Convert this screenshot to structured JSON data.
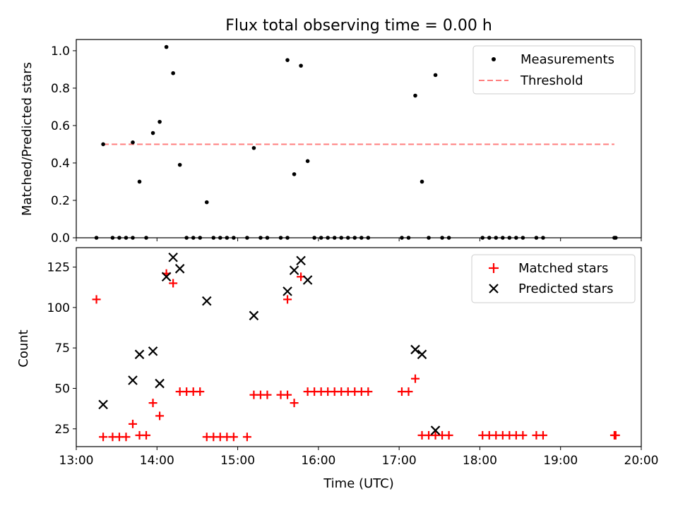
{
  "chart_data": [
    {
      "type": "scatter",
      "title": "Flux total observing time = 0.00 h",
      "xlabel": "",
      "ylabel": "Matched/Predicted stars",
      "ylim": [
        0,
        1.06
      ],
      "yticks": [
        "0.0",
        "0.2",
        "0.4",
        "0.6",
        "0.8",
        "1.0"
      ],
      "legend_position": "upper right",
      "legend": [
        {
          "label": "Measurements",
          "style": "dot",
          "color": "#000000"
        },
        {
          "label": "Threshold",
          "style": "dashed",
          "color": "#ff7f7f"
        }
      ],
      "threshold": {
        "value": 0.5,
        "x_start": "13:20",
        "x_end": "19:40"
      },
      "series": [
        {
          "name": "Measurements",
          "marker": "dot",
          "color": "#000000",
          "points": [
            [
              "13:15",
              0.0
            ],
            [
              "13:20",
              0.5
            ],
            [
              "13:27",
              0.0
            ],
            [
              "13:32",
              0.0
            ],
            [
              "13:37",
              0.0
            ],
            [
              "13:42",
              0.0
            ],
            [
              "13:42",
              0.51
            ],
            [
              "13:47",
              0.3
            ],
            [
              "13:52",
              0.0
            ],
            [
              "13:57",
              0.56
            ],
            [
              "14:02",
              0.62
            ],
            [
              "14:07",
              1.02
            ],
            [
              "14:12",
              0.88
            ],
            [
              "14:17",
              0.39
            ],
            [
              "14:22",
              0.0
            ],
            [
              "14:27",
              0.0
            ],
            [
              "14:32",
              0.0
            ],
            [
              "14:37",
              0.19
            ],
            [
              "14:42",
              0.0
            ],
            [
              "14:47",
              0.0
            ],
            [
              "14:52",
              0.0
            ],
            [
              "14:57",
              0.0
            ],
            [
              "15:07",
              0.0
            ],
            [
              "15:12",
              0.48
            ],
            [
              "15:17",
              0.0
            ],
            [
              "15:22",
              0.0
            ],
            [
              "15:32",
              0.0
            ],
            [
              "15:37",
              0.0
            ],
            [
              "15:37",
              0.95
            ],
            [
              "15:42",
              0.34
            ],
            [
              "15:47",
              0.92
            ],
            [
              "15:52",
              0.41
            ],
            [
              "15:57",
              0.0
            ],
            [
              "16:02",
              0.0
            ],
            [
              "16:07",
              0.0
            ],
            [
              "16:12",
              0.0
            ],
            [
              "16:17",
              0.0
            ],
            [
              "16:22",
              0.0
            ],
            [
              "16:27",
              0.0
            ],
            [
              "16:32",
              0.0
            ],
            [
              "16:37",
              0.0
            ],
            [
              "17:02",
              0.0
            ],
            [
              "17:07",
              0.0
            ],
            [
              "17:12",
              0.76
            ],
            [
              "17:17",
              0.3
            ],
            [
              "17:22",
              0.0
            ],
            [
              "17:27",
              0.87
            ],
            [
              "17:32",
              0.0
            ],
            [
              "17:37",
              0.0
            ],
            [
              "18:02",
              0.0
            ],
            [
              "18:07",
              0.0
            ],
            [
              "18:12",
              0.0
            ],
            [
              "18:17",
              0.0
            ],
            [
              "18:22",
              0.0
            ],
            [
              "18:27",
              0.0
            ],
            [
              "18:32",
              0.0
            ],
            [
              "18:42",
              0.0
            ],
            [
              "18:47",
              0.0
            ],
            [
              "19:40",
              0.0
            ],
            [
              "19:41",
              0.0
            ]
          ]
        }
      ]
    },
    {
      "type": "scatter",
      "title": "",
      "xlabel": "Time (UTC)",
      "ylabel": "Count",
      "xlim": [
        "13:00",
        "20:00"
      ],
      "xticks": [
        "13:00",
        "14:00",
        "15:00",
        "16:00",
        "17:00",
        "18:00",
        "19:00",
        "20:00"
      ],
      "ylim": [
        14,
        137
      ],
      "yticks": [
        "25",
        "50",
        "75",
        "100",
        "125"
      ],
      "legend_position": "upper right",
      "legend": [
        {
          "label": "Matched stars",
          "style": "plus",
          "color": "#ff0000"
        },
        {
          "label": "Predicted stars",
          "style": "x",
          "color": "#000000"
        }
      ],
      "series": [
        {
          "name": "Matched stars",
          "marker": "plus",
          "color": "#ff0000",
          "points": [
            [
              "13:15",
              105
            ],
            [
              "13:20",
              20
            ],
            [
              "13:27",
              20
            ],
            [
              "13:32",
              20
            ],
            [
              "13:37",
              20
            ],
            [
              "13:42",
              28
            ],
            [
              "13:47",
              21
            ],
            [
              "13:52",
              21
            ],
            [
              "13:57",
              41
            ],
            [
              "14:02",
              33
            ],
            [
              "14:07",
              121
            ],
            [
              "14:12",
              115
            ],
            [
              "14:17",
              48
            ],
            [
              "14:22",
              48
            ],
            [
              "14:27",
              48
            ],
            [
              "14:32",
              48
            ],
            [
              "14:37",
              20
            ],
            [
              "14:42",
              20
            ],
            [
              "14:47",
              20
            ],
            [
              "14:52",
              20
            ],
            [
              "14:57",
              20
            ],
            [
              "15:07",
              20
            ],
            [
              "15:12",
              46
            ],
            [
              "15:17",
              46
            ],
            [
              "15:22",
              46
            ],
            [
              "15:32",
              46
            ],
            [
              "15:37",
              46
            ],
            [
              "15:37",
              105
            ],
            [
              "15:42",
              41
            ],
            [
              "15:47",
              119
            ],
            [
              "15:52",
              48
            ],
            [
              "15:57",
              48
            ],
            [
              "16:02",
              48
            ],
            [
              "16:07",
              48
            ],
            [
              "16:12",
              48
            ],
            [
              "16:17",
              48
            ],
            [
              "16:22",
              48
            ],
            [
              "16:27",
              48
            ],
            [
              "16:32",
              48
            ],
            [
              "16:37",
              48
            ],
            [
              "17:02",
              48
            ],
            [
              "17:07",
              48
            ],
            [
              "17:12",
              56
            ],
            [
              "17:17",
              21
            ],
            [
              "17:22",
              21
            ],
            [
              "17:27",
              21
            ],
            [
              "17:32",
              21
            ],
            [
              "17:37",
              21
            ],
            [
              "18:02",
              21
            ],
            [
              "18:07",
              21
            ],
            [
              "18:12",
              21
            ],
            [
              "18:17",
              21
            ],
            [
              "18:22",
              21
            ],
            [
              "18:27",
              21
            ],
            [
              "18:32",
              21
            ],
            [
              "18:42",
              21
            ],
            [
              "18:47",
              21
            ],
            [
              "19:40",
              21
            ],
            [
              "19:41",
              21
            ]
          ]
        },
        {
          "name": "Predicted stars",
          "marker": "x",
          "color": "#000000",
          "points": [
            [
              "13:20",
              40
            ],
            [
              "13:42",
              55
            ],
            [
              "13:47",
              71
            ],
            [
              "13:57",
              73
            ],
            [
              "14:02",
              53
            ],
            [
              "14:07",
              119
            ],
            [
              "14:12",
              131
            ],
            [
              "14:17",
              124
            ],
            [
              "14:37",
              104
            ],
            [
              "15:12",
              95
            ],
            [
              "15:37",
              110
            ],
            [
              "15:42",
              123
            ],
            [
              "15:47",
              129
            ],
            [
              "15:52",
              117
            ],
            [
              "17:12",
              74
            ],
            [
              "17:17",
              71
            ],
            [
              "17:27",
              24
            ]
          ]
        }
      ]
    }
  ]
}
